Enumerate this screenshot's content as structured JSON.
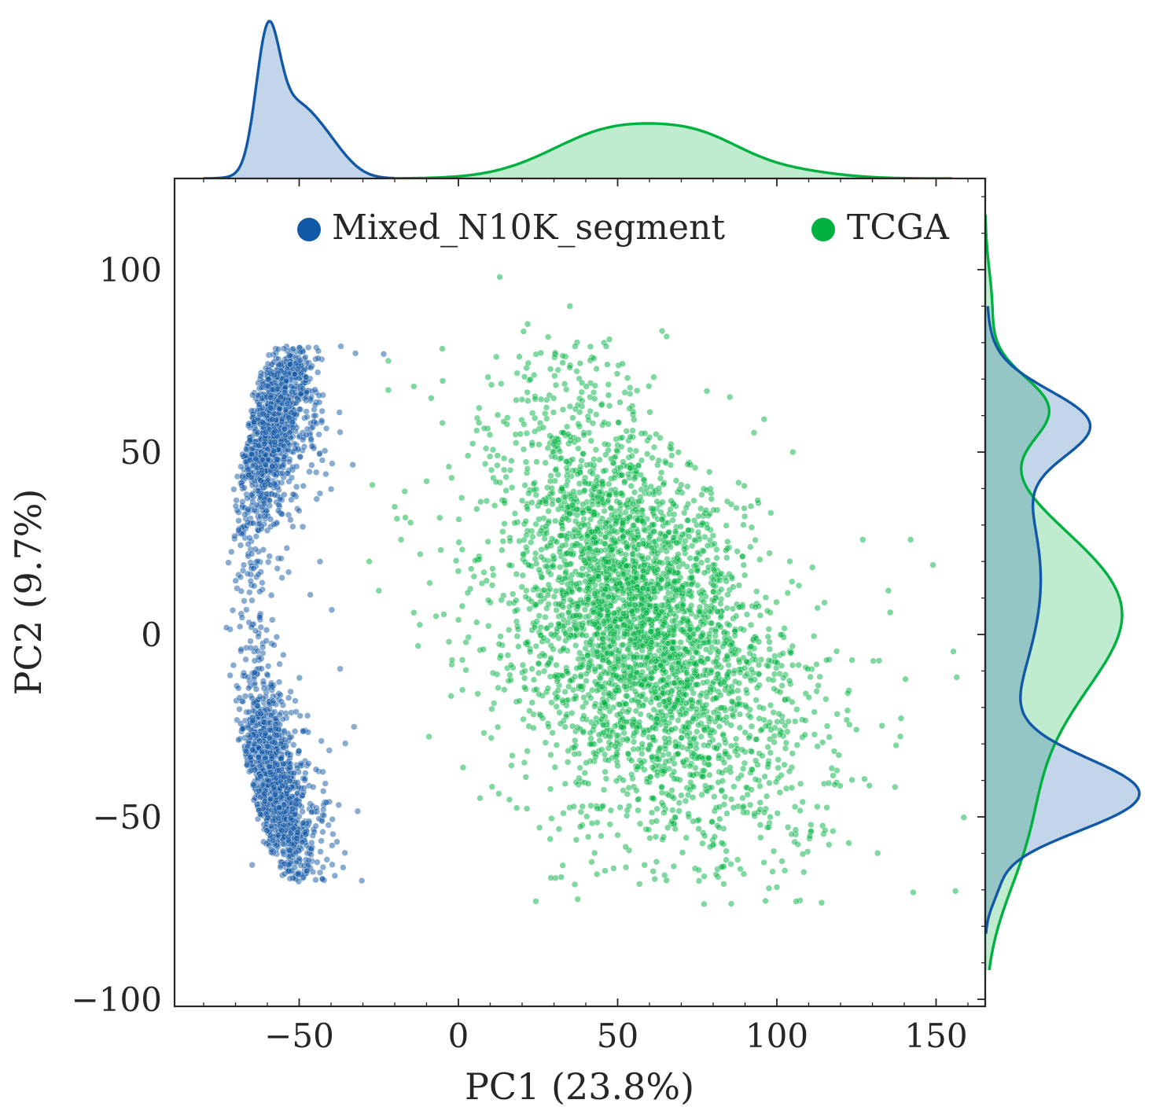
{
  "chart_data": {
    "type": "scatter",
    "title": "",
    "xlabel": "PC1 (23.8%)",
    "ylabel": "PC2 (9.7%)",
    "xlim": [
      -90,
      165
    ],
    "ylim": [
      -102,
      125
    ],
    "xticks": [
      -50,
      0,
      50,
      100,
      150
    ],
    "yticks": [
      -100,
      -50,
      0,
      50,
      100
    ],
    "xtick_labels": [
      "−50",
      "0",
      "50",
      "100",
      "150"
    ],
    "ytick_labels": [
      "−100",
      "−50",
      "0",
      "50",
      "100"
    ],
    "legend_placement": "top-center",
    "grid": false,
    "marginals": "kde on top (PC1) and right (PC2)",
    "series": [
      {
        "name": "Mixed_N10K_segment",
        "color": "#1158a6",
        "n_points_approx": 10000,
        "pc1_range": [
          -75,
          -23
        ],
        "pc2_range": [
          -68,
          80
        ],
        "shape": "crescent arc: PC1 centre -52 at PC2 78, -66 at PC2 10, -52 at PC2 -62",
        "marginal_pc1_kde": {
          "mode": -60,
          "range": [
            -78,
            -25
          ]
        },
        "marginal_pc2_kde": {
          "modes": [
            58,
            -43
          ],
          "range": [
            -82,
            90
          ]
        }
      },
      {
        "name": "TCGA",
        "color": "#00b140",
        "n_points_approx": 10000,
        "pc1_range": [
          -20,
          145
        ],
        "pc2_range": [
          -75,
          98
        ],
        "shape": "diagonal cloud: centre about (40, 50) at top to (75, -55) at bottom",
        "marginal_pc1_kde": {
          "mode": 52,
          "range": [
            -20,
            155
          ]
        },
        "marginal_pc2_kde": {
          "modes": [
            12,
            60
          ],
          "range": [
            -92,
            115
          ]
        }
      }
    ]
  }
}
